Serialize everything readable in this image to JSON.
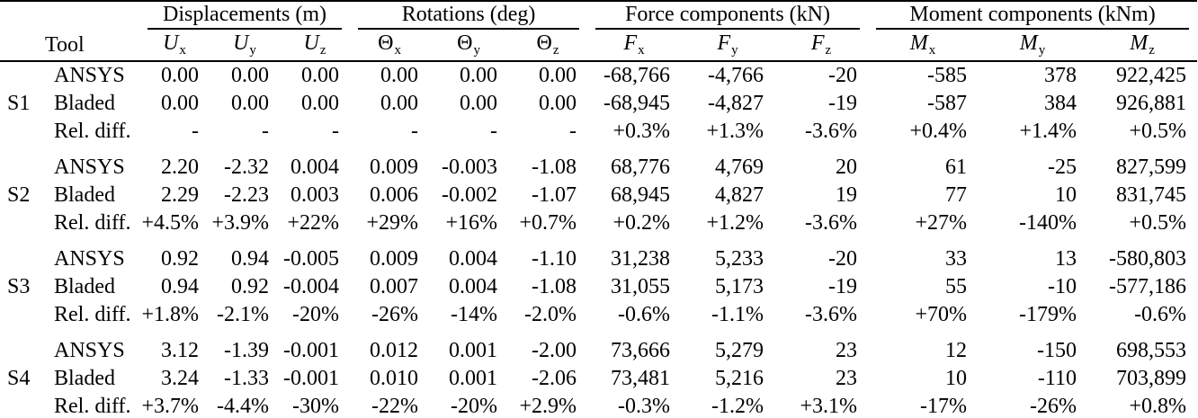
{
  "page": {
    "background_color": "#ffffff",
    "text_color": "#000000",
    "rule_color": "#000000"
  },
  "table": {
    "tool_header": "Tool",
    "col_groups": [
      {
        "label": "Displacements (m)"
      },
      {
        "label": "Rotations (deg)"
      },
      {
        "label": "Force components (kN)"
      },
      {
        "label": "Moment components (kNm)"
      }
    ],
    "sub_headers": [
      {
        "base": "U",
        "sub": "x",
        "italic": true
      },
      {
        "base": "U",
        "sub": "y",
        "italic": true
      },
      {
        "base": "U",
        "sub": "z",
        "italic": true
      },
      {
        "base": "Θ",
        "sub": "x",
        "italic": false
      },
      {
        "base": "Θ",
        "sub": "y",
        "italic": false
      },
      {
        "base": "Θ",
        "sub": "z",
        "italic": false
      },
      {
        "base": "F",
        "sub": "x",
        "italic": true
      },
      {
        "base": "F",
        "sub": "y",
        "italic": true
      },
      {
        "base": "F",
        "sub": "z",
        "italic": true
      },
      {
        "base": "M",
        "sub": "x",
        "italic": true
      },
      {
        "base": "M",
        "sub": "y",
        "italic": true
      },
      {
        "base": "M",
        "sub": "z",
        "italic": true
      }
    ],
    "groups": [
      {
        "label": "S1",
        "rows": [
          {
            "tool": "ANSYS",
            "values": [
              "0.00",
              "0.00",
              "0.00",
              "0.00",
              "0.00",
              "0.00",
              "-68,766",
              "-4,766",
              "-20",
              "-585",
              "378",
              "922,425"
            ]
          },
          {
            "tool": "Bladed",
            "values": [
              "0.00",
              "0.00",
              "0.00",
              "0.00",
              "0.00",
              "0.00",
              "-68,945",
              "-4,827",
              "-19",
              "-587",
              "384",
              "926,881"
            ]
          },
          {
            "tool": "Rel. diff.",
            "values": [
              "-",
              "-",
              "-",
              "-",
              "-",
              "-",
              "+0.3%",
              "+1.3%",
              "-3.6%",
              "+0.4%",
              "+1.4%",
              "+0.5%"
            ]
          }
        ]
      },
      {
        "label": "S2",
        "rows": [
          {
            "tool": "ANSYS",
            "values": [
              "2.20",
              "-2.32",
              "0.004",
              "0.009",
              "-0.003",
              "-1.08",
              "68,776",
              "4,769",
              "20",
              "61",
              "-25",
              "827,599"
            ]
          },
          {
            "tool": "Bladed",
            "values": [
              "2.29",
              "-2.23",
              "0.003",
              "0.006",
              "-0.002",
              "-1.07",
              "68,945",
              "4,827",
              "19",
              "77",
              "10",
              "831,745"
            ]
          },
          {
            "tool": "Rel. diff.",
            "values": [
              "+4.5%",
              "+3.9%",
              "+22%",
              "+29%",
              "+16%",
              "+0.7%",
              "+0.2%",
              "+1.2%",
              "-3.6%",
              "+27%",
              "-140%",
              "+0.5%"
            ]
          }
        ]
      },
      {
        "label": "S3",
        "rows": [
          {
            "tool": "ANSYS",
            "values": [
              "0.92",
              "0.94",
              "-0.005",
              "0.009",
              "0.004",
              "-1.10",
              "31,238",
              "5,233",
              "-20",
              "33",
              "13",
              "-580,803"
            ]
          },
          {
            "tool": "Bladed",
            "values": [
              "0.94",
              "0.92",
              "-0.004",
              "0.007",
              "0.004",
              "-1.08",
              "31,055",
              "5,173",
              "-19",
              "55",
              "-10",
              "-577,186"
            ]
          },
          {
            "tool": "Rel. diff.",
            "values": [
              "+1.8%",
              "-2.1%",
              "-20%",
              "-26%",
              "-14%",
              "-2.0%",
              "-0.6%",
              "-1.1%",
              "-3.6%",
              "+70%",
              "-179%",
              "-0.6%"
            ]
          }
        ]
      },
      {
        "label": "S4",
        "rows": [
          {
            "tool": "ANSYS",
            "values": [
              "3.12",
              "-1.39",
              "-0.001",
              "0.012",
              "0.001",
              "-2.00",
              "73,666",
              "5,279",
              "23",
              "12",
              "-150",
              "698,553"
            ]
          },
          {
            "tool": "Bladed",
            "values": [
              "3.24",
              "-1.33",
              "-0.001",
              "0.010",
              "0.001",
              "-2.06",
              "73,481",
              "5,216",
              "23",
              "10",
              "-110",
              "703,899"
            ]
          },
          {
            "tool": "Rel. diff.",
            "values": [
              "+3.7%",
              "-4.4%",
              "-30%",
              "-22%",
              "-20%",
              "+2.9%",
              "-0.3%",
              "-1.2%",
              "+3.1%",
              "-17%",
              "-26%",
              "+0.8%"
            ]
          }
        ]
      }
    ]
  }
}
